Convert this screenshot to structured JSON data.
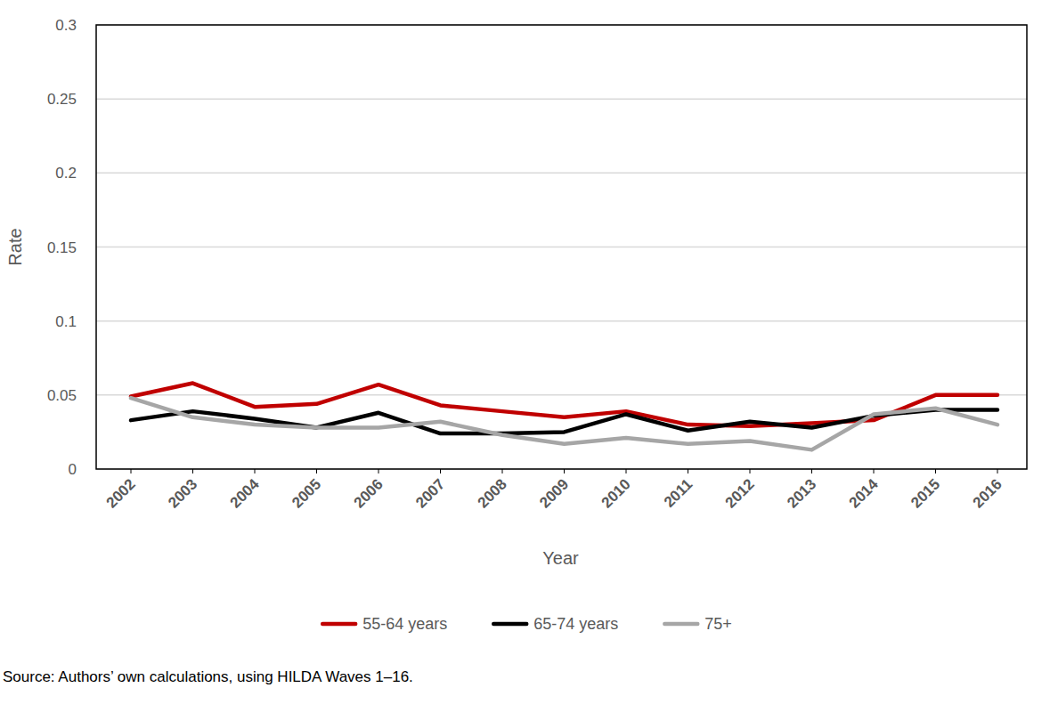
{
  "chart_data": {
    "type": "line",
    "x_label": "Year",
    "y_label": "Rate",
    "source": "Source: Authors’ own calculations, using HILDA Waves 1–16.",
    "categories": [
      "2002",
      "2003",
      "2004",
      "2005",
      "2006",
      "2007",
      "2008",
      "2009",
      "2010",
      "2011",
      "2012",
      "2013",
      "2014",
      "2015",
      "2016"
    ],
    "series": [
      {
        "name": "55-64 years",
        "color": "#c00000",
        "values": [
          0.049,
          0.058,
          0.042,
          0.044,
          0.057,
          0.043,
          0.039,
          0.035,
          0.039,
          0.03,
          0.029,
          0.031,
          0.033,
          0.05,
          0.05
        ]
      },
      {
        "name": "65-74 years",
        "color": "#000000",
        "values": [
          0.033,
          0.039,
          0.034,
          0.028,
          0.038,
          0.024,
          0.024,
          0.025,
          0.037,
          0.026,
          0.032,
          0.028,
          0.036,
          0.04,
          0.04
        ]
      },
      {
        "name": "75+",
        "color": "#a6a6a6",
        "values": [
          0.048,
          0.035,
          0.03,
          0.028,
          0.028,
          0.032,
          0.023,
          0.017,
          0.021,
          0.017,
          0.019,
          0.013,
          0.037,
          0.041,
          0.03
        ]
      }
    ],
    "ylim": [
      0,
      0.3
    ],
    "yticks": [
      0,
      0.05,
      0.1,
      0.15,
      0.2,
      0.25,
      0.3
    ],
    "grid": true,
    "legend": "bottom"
  }
}
